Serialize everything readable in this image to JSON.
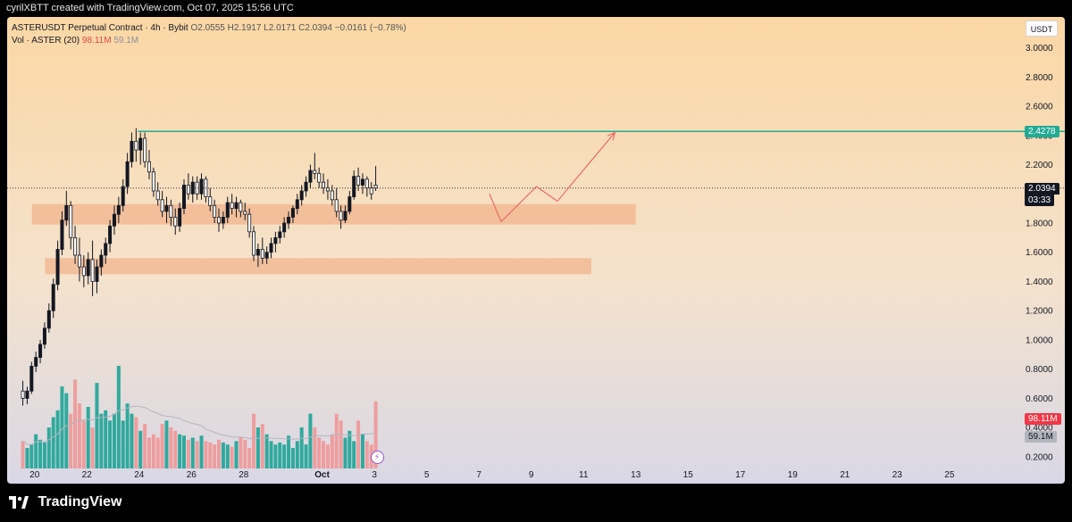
{
  "header": {
    "attribution": "cyrilXBTT created with TradingView.com, Oct 07, 2025 15:56 UTC"
  },
  "legend": {
    "symbol": "ASTERUSDT Perpetual Contract · 4h · Bybit",
    "ohlc": "O2.0555  H2.1917  L2.0171  C2.0394  −0.0161 (−0.78%)",
    "vol_label": "Vol · ASTER (20)",
    "vol_value": "98.11M",
    "vol_ma": "59.1M"
  },
  "currency": "USDT",
  "colors": {
    "up": "#089981",
    "down": "#f23645",
    "zone": "#f0b48c",
    "resistance": "#22ab94",
    "projection": "#f05a5a"
  },
  "tags": {
    "resistance_price": "2.4278",
    "last_price": "2.0394",
    "countdown": "03:33",
    "volume_now": "98.11M",
    "volume_ma": "59.1M"
  },
  "brand": "TradingView",
  "chart_data": {
    "type": "candlestick",
    "x_axis": {
      "ticks": [
        "20",
        "22",
        "24",
        "26",
        "28",
        "Oct",
        "3",
        "5",
        "7",
        "9",
        "11",
        "13",
        "15",
        "17",
        "19",
        "21",
        "23",
        "25"
      ],
      "tick_days": [
        20,
        22,
        24,
        26,
        28,
        31,
        33,
        35,
        37,
        39,
        41,
        43,
        45,
        47,
        49,
        51,
        53,
        55
      ],
      "range_days": [
        18.95,
        57.5
      ]
    },
    "y_axis": {
      "ticks": [
        "3.0000",
        "2.8000",
        "2.6000",
        "2.4000",
        "2.2000",
        "2.0000",
        "1.8000",
        "1.6000",
        "1.4000",
        "1.2000",
        "1.0000",
        "0.8000",
        "0.6000",
        "0.4000",
        "0.2000"
      ],
      "tick_values": [
        3.0,
        2.8,
        2.6,
        2.4,
        2.2,
        2.0,
        1.8,
        1.6,
        1.4,
        1.2,
        1.0,
        0.8,
        0.6,
        0.4,
        0.2
      ],
      "range": [
        0.12,
        3.15
      ]
    },
    "candles_4h_ohlc": [
      [
        0.65,
        0.72,
        0.55,
        0.6
      ],
      [
        0.6,
        0.68,
        0.56,
        0.65
      ],
      [
        0.65,
        0.85,
        0.63,
        0.82
      ],
      [
        0.82,
        0.92,
        0.78,
        0.88
      ],
      [
        0.88,
        1.0,
        0.84,
        0.97
      ],
      [
        0.97,
        1.12,
        0.94,
        1.08
      ],
      [
        1.08,
        1.25,
        1.05,
        1.2
      ],
      [
        1.2,
        1.42,
        1.15,
        1.38
      ],
      [
        1.38,
        1.68,
        1.34,
        1.62
      ],
      [
        1.62,
        1.88,
        1.58,
        1.82
      ],
      [
        1.82,
        2.02,
        1.78,
        1.92
      ],
      [
        1.92,
        1.95,
        1.62,
        1.7
      ],
      [
        1.7,
        1.78,
        1.52,
        1.58
      ],
      [
        1.58,
        1.7,
        1.4,
        1.5
      ],
      [
        1.5,
        1.58,
        1.36,
        1.44
      ],
      [
        1.44,
        1.6,
        1.38,
        1.55
      ],
      [
        1.55,
        1.68,
        1.3,
        1.4
      ],
      [
        1.4,
        1.55,
        1.32,
        1.5
      ],
      [
        1.5,
        1.62,
        1.44,
        1.58
      ],
      [
        1.58,
        1.7,
        1.52,
        1.66
      ],
      [
        1.66,
        1.82,
        1.6,
        1.78
      ],
      [
        1.78,
        1.92,
        1.72,
        1.86
      ],
      [
        1.86,
        1.98,
        1.8,
        1.92
      ],
      [
        1.92,
        2.1,
        1.88,
        2.05
      ],
      [
        2.05,
        2.28,
        2.0,
        2.22
      ],
      [
        2.22,
        2.42,
        2.18,
        2.36
      ],
      [
        2.36,
        2.45,
        2.22,
        2.3
      ],
      [
        2.3,
        2.42,
        2.2,
        2.38
      ],
      [
        2.38,
        2.42,
        2.18,
        2.22
      ],
      [
        2.22,
        2.3,
        2.1,
        2.15
      ],
      [
        2.15,
        2.18,
        1.98,
        2.02
      ],
      [
        2.02,
        2.08,
        1.92,
        1.96
      ],
      [
        1.96,
        2.02,
        1.84,
        1.88
      ],
      [
        1.88,
        1.98,
        1.8,
        1.92
      ],
      [
        1.92,
        1.96,
        1.78,
        1.84
      ],
      [
        1.84,
        1.9,
        1.72,
        1.78
      ],
      [
        1.78,
        1.94,
        1.74,
        1.9
      ],
      [
        1.9,
        2.1,
        1.86,
        2.06
      ],
      [
        2.06,
        2.14,
        1.96,
        2.0
      ],
      [
        2.0,
        2.12,
        1.94,
        2.08
      ],
      [
        2.08,
        2.12,
        1.96,
        2.0
      ],
      [
        2.0,
        2.14,
        1.96,
        2.1
      ],
      [
        2.1,
        2.12,
        1.94,
        1.98
      ],
      [
        1.98,
        2.04,
        1.88,
        1.92
      ],
      [
        1.92,
        1.96,
        1.8,
        1.84
      ],
      [
        1.84,
        1.9,
        1.74,
        1.8
      ],
      [
        1.8,
        1.88,
        1.76,
        1.84
      ],
      [
        1.84,
        1.98,
        1.8,
        1.94
      ],
      [
        1.94,
        2.0,
        1.86,
        1.9
      ],
      [
        1.9,
        1.98,
        1.84,
        1.94
      ],
      [
        1.94,
        1.96,
        1.84,
        1.88
      ],
      [
        1.88,
        1.94,
        1.82,
        1.86
      ],
      [
        1.86,
        1.9,
        1.7,
        1.74
      ],
      [
        1.74,
        1.78,
        1.54,
        1.58
      ],
      [
        1.58,
        1.66,
        1.5,
        1.62
      ],
      [
        1.62,
        1.7,
        1.52,
        1.56
      ],
      [
        1.56,
        1.64,
        1.52,
        1.6
      ],
      [
        1.6,
        1.7,
        1.56,
        1.66
      ],
      [
        1.66,
        1.74,
        1.6,
        1.7
      ],
      [
        1.7,
        1.78,
        1.66,
        1.74
      ],
      [
        1.74,
        1.84,
        1.7,
        1.8
      ],
      [
        1.8,
        1.88,
        1.76,
        1.84
      ],
      [
        1.84,
        1.92,
        1.8,
        1.9
      ],
      [
        1.9,
        2.0,
        1.86,
        1.96
      ],
      [
        1.96,
        2.06,
        1.92,
        2.02
      ],
      [
        2.02,
        2.12,
        1.98,
        2.08
      ],
      [
        2.08,
        2.2,
        2.04,
        2.16
      ],
      [
        2.16,
        2.28,
        2.1,
        2.14
      ],
      [
        2.14,
        2.18,
        2.04,
        2.08
      ],
      [
        2.08,
        2.14,
        2.0,
        2.04
      ],
      [
        2.04,
        2.1,
        1.96,
        2.02
      ],
      [
        2.02,
        2.06,
        1.92,
        1.96
      ],
      [
        1.96,
        2.04,
        1.84,
        1.88
      ],
      [
        1.88,
        1.92,
        1.76,
        1.82
      ],
      [
        1.82,
        1.92,
        1.8,
        1.88
      ],
      [
        1.88,
        2.02,
        1.86,
        1.98
      ],
      [
        1.98,
        2.16,
        1.96,
        2.12
      ],
      [
        2.12,
        2.18,
        2.02,
        2.06
      ],
      [
        2.06,
        2.14,
        2.0,
        2.1
      ],
      [
        2.1,
        2.12,
        1.98,
        2.04
      ],
      [
        2.04,
        2.08,
        1.96,
        2.0
      ],
      [
        2.06,
        2.19,
        2.02,
        2.04
      ]
    ],
    "volume_millions": [
      40,
      30,
      35,
      50,
      42,
      38,
      60,
      75,
      85,
      120,
      110,
      80,
      130,
      95,
      70,
      90,
      60,
      125,
      80,
      85,
      70,
      80,
      150,
      70,
      95,
      80,
      75,
      55,
      65,
      45,
      50,
      45,
      65,
      70,
      60,
      55,
      50,
      48,
      42,
      45,
      40,
      48,
      40,
      38,
      35,
      42,
      38,
      35,
      32,
      40,
      45,
      42,
      30,
      80,
      60,
      65,
      50,
      40,
      35,
      38,
      35,
      48,
      30,
      40,
      60,
      35,
      80,
      60,
      45,
      40,
      35,
      50,
      80,
      70,
      45,
      55,
      40,
      70,
      50,
      40,
      35,
      98.11
    ],
    "volume_ma_millions": 59.1,
    "resistance_level": 2.4278,
    "last_price": 2.0394,
    "zones": [
      {
        "from_day": 19.9,
        "to_day": 43.0,
        "low": 1.79,
        "high": 1.93
      },
      {
        "from_day": 20.4,
        "to_day": 41.3,
        "low": 1.45,
        "high": 1.56
      }
    ],
    "projection_path": [
      [
        37.4,
        2.0
      ],
      [
        37.85,
        1.81
      ],
      [
        39.2,
        2.05
      ],
      [
        40.0,
        1.95
      ],
      [
        42.2,
        2.42
      ]
    ]
  }
}
